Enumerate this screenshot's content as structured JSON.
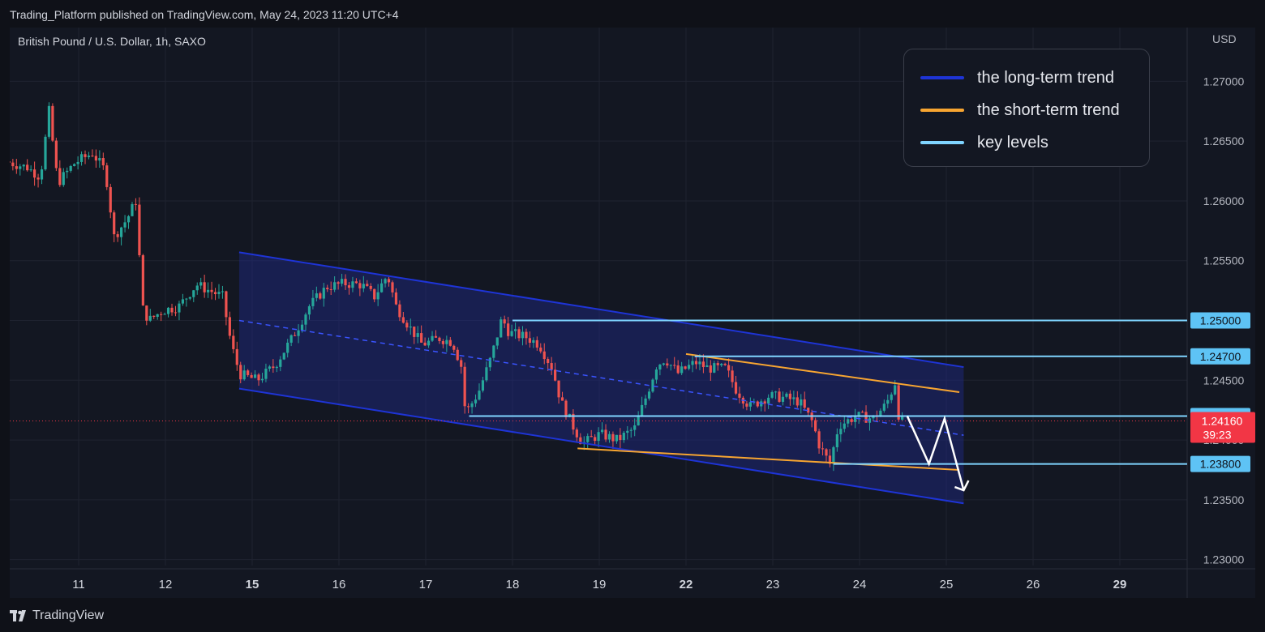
{
  "header": {
    "published_text": "Trading_Platform published on TradingView.com, May 24, 2023 11:20 UTC+4"
  },
  "footer": {
    "brand": "TradingView",
    "brand_icon": "tradingview-logo-icon"
  },
  "colors": {
    "background": "#131722",
    "grid": "#1f2330",
    "long_term": "#1e34d6",
    "short_term": "#f7a531",
    "key_levels": "#7fd4ff",
    "bull": "#26a69a",
    "bear": "#ef5350",
    "current_price": "#f23645",
    "projection": "#ffffff"
  },
  "chart_data": {
    "type": "candlestick",
    "symbol_label": "British Pound / U.S. Dollar, 1h, SAXO",
    "currency": "USD",
    "y_range": [
      1.2295,
      1.2745
    ],
    "x_range": [
      10.2,
      30.5
    ],
    "y_ticks": [
      "1.27000",
      "1.26500",
      "1.26000",
      "1.25500",
      "1.25000",
      "1.24500",
      "1.24000",
      "1.23500",
      "1.23000"
    ],
    "y_tick_values": [
      1.27,
      1.265,
      1.26,
      1.255,
      1.25,
      1.245,
      1.24,
      1.235,
      1.23
    ],
    "x_ticks": [
      {
        "label": "11",
        "x": 11.0,
        "bold": false
      },
      {
        "label": "12",
        "x": 12.0,
        "bold": false
      },
      {
        "label": "15",
        "x": 13.0,
        "bold": true
      },
      {
        "label": "16",
        "x": 14.0,
        "bold": false
      },
      {
        "label": "17",
        "x": 15.0,
        "bold": false
      },
      {
        "label": "18",
        "x": 16.0,
        "bold": false
      },
      {
        "label": "19",
        "x": 17.0,
        "bold": false
      },
      {
        "label": "22",
        "x": 18.0,
        "bold": true
      },
      {
        "label": "23",
        "x": 19.0,
        "bold": false
      },
      {
        "label": "24",
        "x": 20.0,
        "bold": false
      },
      {
        "label": "25",
        "x": 21.0,
        "bold": false
      },
      {
        "label": "26",
        "x": 22.0,
        "bold": false
      },
      {
        "label": "29",
        "x": 23.0,
        "bold": true
      }
    ],
    "key_levels": [
      {
        "label": "1.25000",
        "value": 1.25,
        "x_start": 16.0
      },
      {
        "label": "1.24700",
        "value": 1.247,
        "x_start": 18.1
      },
      {
        "label": "1.24200",
        "value": 1.242,
        "x_start": 15.5
      },
      {
        "label": "1.23800",
        "value": 1.238,
        "x_start": 19.7
      }
    ],
    "current_price": {
      "label": "1.24160",
      "value": 1.2416,
      "countdown": "39:23"
    },
    "long_term_channel": {
      "upper": [
        [
          12.85,
          1.2557
        ],
        [
          21.2,
          1.2461
        ]
      ],
      "lower": [
        [
          12.85,
          1.2443
        ],
        [
          21.2,
          1.2347
        ]
      ],
      "mid": [
        [
          12.85,
          1.25
        ],
        [
          21.2,
          1.2404
        ]
      ]
    },
    "short_term_lines": [
      [
        [
          18.0,
          1.2472
        ],
        [
          21.15,
          1.244
        ]
      ],
      [
        [
          16.75,
          1.2393
        ],
        [
          21.15,
          1.2375
        ]
      ]
    ],
    "projection_path": [
      [
        20.55,
        1.242
      ],
      [
        20.8,
        1.238
      ],
      [
        20.98,
        1.2418
      ],
      [
        21.2,
        1.2358
      ]
    ],
    "legend": [
      {
        "label": "the long-term trend",
        "color": "#1e34d6"
      },
      {
        "label": "the short-term trend",
        "color": "#f7a531"
      },
      {
        "label": "key levels",
        "color": "#7fd4ff"
      }
    ],
    "price_path": [
      [
        10.2,
        1.2633
      ],
      [
        10.45,
        1.2628
      ],
      [
        10.6,
        1.262
      ],
      [
        10.7,
        1.2675
      ],
      [
        10.8,
        1.2615
      ],
      [
        11.0,
        1.2632
      ],
      [
        11.2,
        1.264
      ],
      [
        11.35,
        1.2625
      ],
      [
        11.45,
        1.257
      ],
      [
        11.6,
        1.2585
      ],
      [
        11.7,
        1.26
      ],
      [
        11.78,
        1.251
      ],
      [
        11.85,
        1.25
      ],
      [
        12.0,
        1.2508
      ],
      [
        12.2,
        1.2512
      ],
      [
        12.4,
        1.253
      ],
      [
        12.55,
        1.2525
      ],
      [
        12.7,
        1.252
      ],
      [
        12.8,
        1.248
      ],
      [
        12.9,
        1.2455
      ],
      [
        13.1,
        1.245
      ],
      [
        13.3,
        1.2462
      ],
      [
        13.5,
        1.2485
      ],
      [
        13.7,
        1.2512
      ],
      [
        13.9,
        1.2528
      ],
      [
        14.1,
        1.2531
      ],
      [
        14.3,
        1.253
      ],
      [
        14.45,
        1.252
      ],
      [
        14.6,
        1.2538
      ],
      [
        14.7,
        1.2512
      ],
      [
        14.85,
        1.2495
      ],
      [
        15.0,
        1.248
      ],
      [
        15.2,
        1.2485
      ],
      [
        15.35,
        1.2482
      ],
      [
        15.45,
        1.2462
      ],
      [
        15.5,
        1.2422
      ],
      [
        15.65,
        1.244
      ],
      [
        15.8,
        1.247
      ],
      [
        15.92,
        1.2502
      ],
      [
        16.0,
        1.249
      ],
      [
        16.2,
        1.2486
      ],
      [
        16.35,
        1.248
      ],
      [
        16.5,
        1.246
      ],
      [
        16.6,
        1.2432
      ],
      [
        16.75,
        1.241
      ],
      [
        16.85,
        1.2397
      ],
      [
        17.05,
        1.2405
      ],
      [
        17.25,
        1.24
      ],
      [
        17.45,
        1.241
      ],
      [
        17.6,
        1.244
      ],
      [
        17.7,
        1.2462
      ],
      [
        17.8,
        1.2468
      ],
      [
        17.95,
        1.2456
      ],
      [
        18.15,
        1.2465
      ],
      [
        18.3,
        1.246
      ],
      [
        18.5,
        1.246
      ],
      [
        18.62,
        1.2442
      ],
      [
        18.78,
        1.2428
      ],
      [
        19.0,
        1.2437
      ],
      [
        19.2,
        1.2435
      ],
      [
        19.35,
        1.2432
      ],
      [
        19.5,
        1.2415
      ],
      [
        19.58,
        1.2395
      ],
      [
        19.7,
        1.238
      ],
      [
        19.8,
        1.2412
      ],
      [
        20.0,
        1.242
      ],
      [
        20.2,
        1.2418
      ],
      [
        20.35,
        1.243
      ],
      [
        20.45,
        1.2448
      ],
      [
        20.5,
        1.2416
      ]
    ]
  }
}
